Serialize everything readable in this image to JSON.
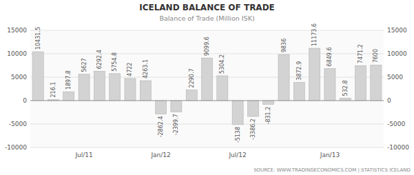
{
  "chart_data": {
    "type": "bar",
    "title": "ICELAND BALANCE OF TRADE",
    "subtitle": "Balance of Trade (Million ISK)",
    "source": "SOURCE: WWW.TRADINGECONOMICS.COM  |  STATISTICS ICELAND",
    "categories": [
      null,
      null,
      null,
      "Jul/11",
      null,
      null,
      null,
      null,
      "Jan/12",
      null,
      null,
      null,
      null,
      "Jul/12",
      null,
      null,
      null,
      null,
      null,
      "Jan/13",
      null,
      null,
      null
    ],
    "values": [
      10431.5,
      216.1,
      1897.8,
      5627,
      6292.4,
      5754.8,
      4722,
      4263.1,
      -2862.4,
      -2399.7,
      2290.7,
      9099.6,
      5304.2,
      -5138,
      -3386.2,
      -831.2,
      9836,
      3872.9,
      11173.6,
      6849.6,
      532.8,
      7471.2,
      7600
    ],
    "color": "#d3d3d3",
    "ylim": [
      -10000,
      15000
    ],
    "yticks": [
      -10000,
      -5000,
      0,
      5000,
      10000,
      15000
    ],
    "y2lim": [
      -10000,
      15000
    ],
    "y2ticks": [
      -10000,
      -5000,
      0,
      5000,
      10000,
      15000
    ],
    "grid": true,
    "data_labels": true
  }
}
